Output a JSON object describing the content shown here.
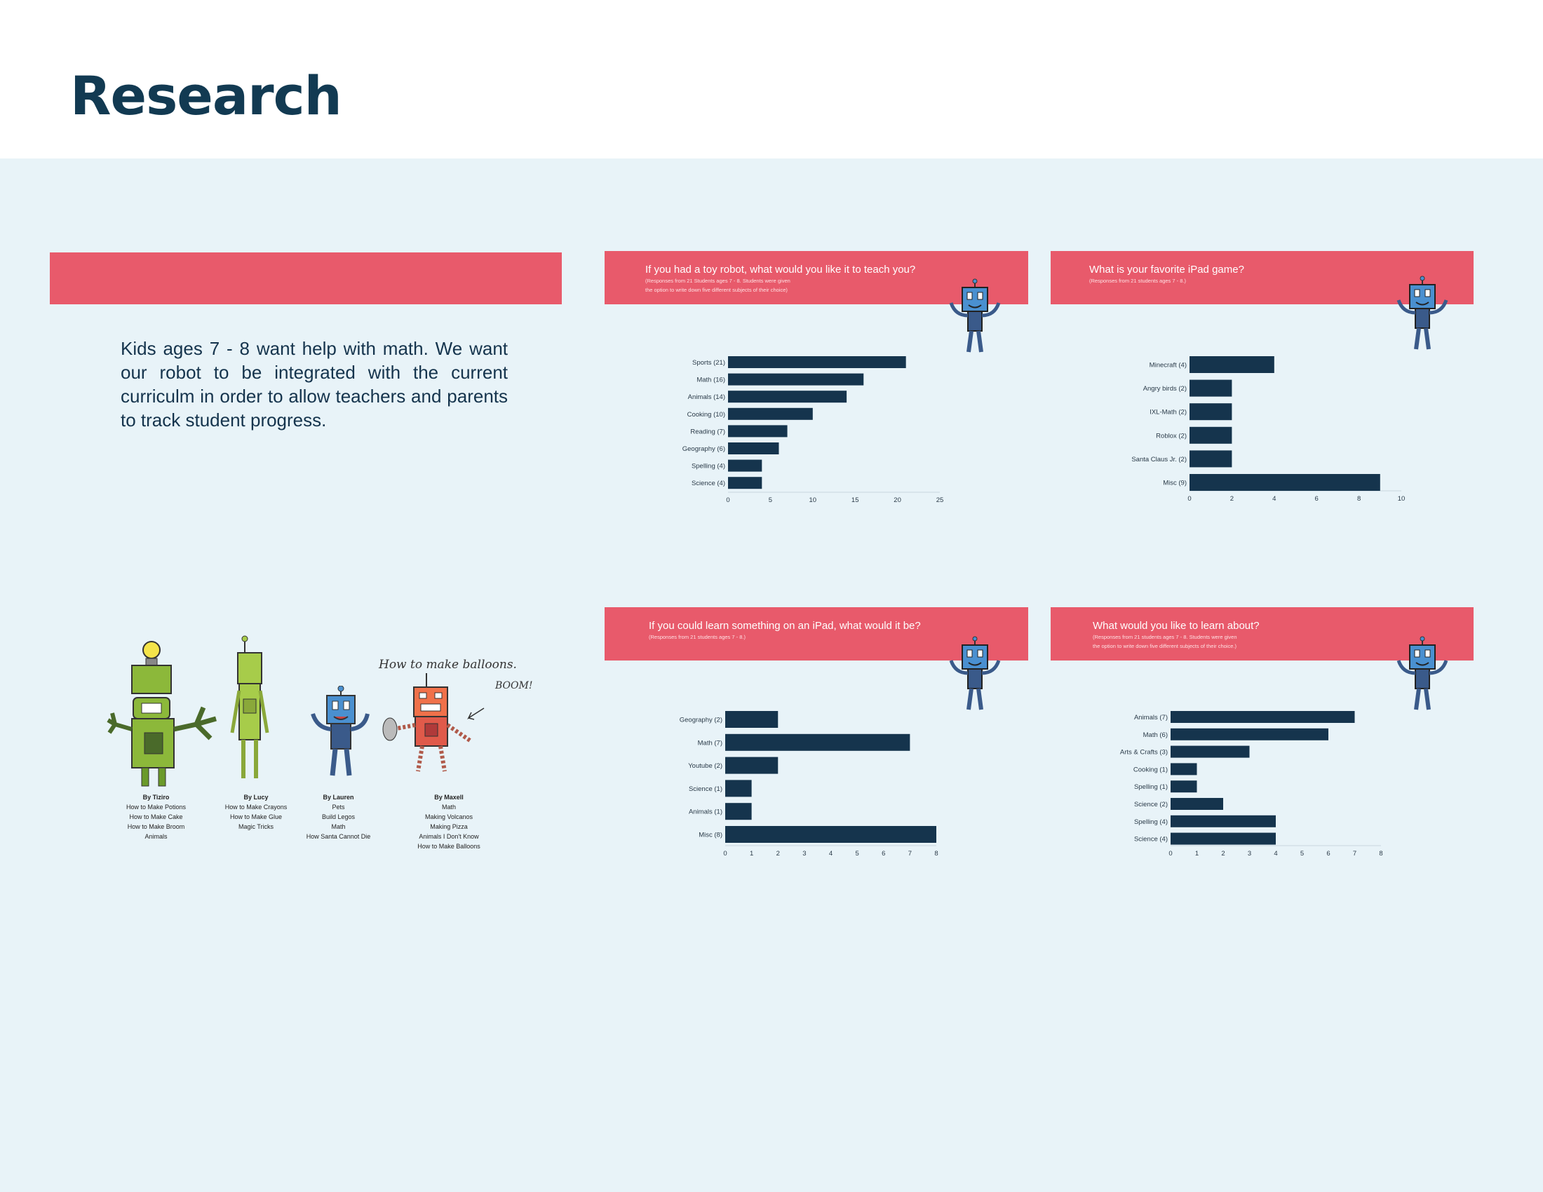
{
  "page": {
    "title": "Research"
  },
  "intro": {
    "text": "Kids ages 7 - 8 want help with math. We want our robot to be integrated with the current curriculm in order to allow teachers and parents to track student progress."
  },
  "colors": {
    "accent": "#e85a6b",
    "bar": "#15344d",
    "background": "#e8f3f8",
    "title": "#123a52"
  },
  "drawings": {
    "handwriting": "How to make balloons.",
    "pop_text": "BOOM!",
    "credits": [
      {
        "name": "By Tiziro",
        "lines": [
          "How to Make Potions",
          "How to Make Cake",
          "How to Make Broom",
          "Animals"
        ]
      },
      {
        "name": "By Lucy",
        "lines": [
          "How to Make Crayons",
          "How to Make Glue",
          "Magic Tricks"
        ]
      },
      {
        "name": "By Lauren",
        "lines": [
          "Pets",
          "Build Legos",
          "Math",
          "How Santa Cannot Die"
        ]
      },
      {
        "name": "By Maxell",
        "lines": [
          "Math",
          "Making Volcanos",
          "Making Pizza",
          "Animals I Don't Know",
          "How to Make Balloons"
        ]
      }
    ]
  },
  "chart_data": [
    {
      "type": "bar",
      "orientation": "horizontal",
      "title": "If you had a toy robot, what would you like it to teach you?",
      "subtitle": [
        "(Responses from 21 Students ages 7 - 8. Students were given",
        "the option to write down five different subjects of their choice)"
      ],
      "categories": [
        "Sports (21)",
        "Math (16)",
        "Animals (14)",
        "Cooking (10)",
        "Reading (7)",
        "Geography (6)",
        "Spelling (4)",
        "Science (4)"
      ],
      "values": [
        21,
        16,
        14,
        10,
        7,
        6,
        4,
        4
      ],
      "xlim": [
        0,
        25
      ],
      "xticks": [
        "0",
        "5",
        "10",
        "15",
        "20",
        "25"
      ]
    },
    {
      "type": "bar",
      "orientation": "horizontal",
      "title": "What is your favorite iPad game?",
      "subtitle": [
        "(Responses from 21 students ages 7 - 8.)"
      ],
      "categories": [
        "Minecraft (4)",
        "Angry birds (2)",
        "IXL-Math (2)",
        "Roblox (2)",
        "Santa Claus Jr. (2)",
        "Misc (9)"
      ],
      "values": [
        4,
        2,
        2,
        2,
        2,
        9
      ],
      "xlim": [
        0,
        10
      ],
      "xticks": [
        "0",
        "2",
        "4",
        "6",
        "8",
        "10"
      ]
    },
    {
      "type": "bar",
      "orientation": "horizontal",
      "title": "If you could learn something on an iPad, what would it be?",
      "subtitle": [
        "(Responses from 21 students ages 7 - 8.)"
      ],
      "categories": [
        "Geography (2)",
        "Math (7)",
        "Youtube (2)",
        "Science (1)",
        "Animals (1)",
        "Misc (8)"
      ],
      "values": [
        2,
        7,
        2,
        1,
        1,
        8
      ],
      "xlim": [
        0,
        8
      ],
      "xticks": [
        "0",
        "1",
        "2",
        "3",
        "4",
        "5",
        "6",
        "7",
        "8"
      ]
    },
    {
      "type": "bar",
      "orientation": "horizontal",
      "title": "What would you like to learn about?",
      "subtitle": [
        "(Responses from 21 students ages 7 - 8. Students were given",
        "the option to write down five different subjects of their choice.)"
      ],
      "categories": [
        "Animals (7)",
        "Math (6)",
        "Arts & Crafts (3)",
        "Cooking (1)",
        "Spelling (1)",
        "Science (2)",
        "Spelling (4)",
        "Science (4)"
      ],
      "values": [
        7,
        6,
        3,
        1,
        1,
        2,
        4,
        4
      ],
      "xlim": [
        0,
        8
      ],
      "xticks": [
        "0",
        "1",
        "2",
        "3",
        "4",
        "5",
        "6",
        "7",
        "8"
      ]
    }
  ]
}
